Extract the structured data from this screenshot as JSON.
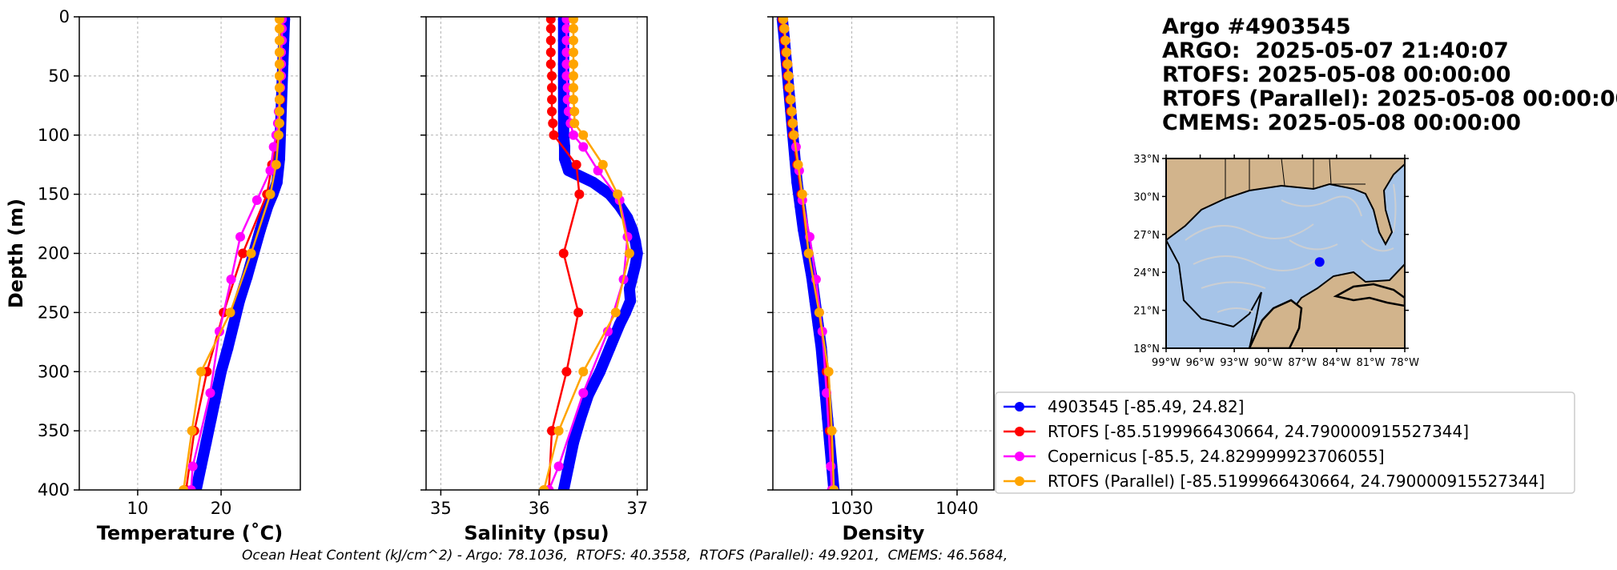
{
  "header": {
    "title_lines": [
      "Argo #4903545",
      "ARGO:  2025-05-07 21:40:07",
      "RTOFS: 2025-05-08 00:00:00",
      "RTOFS (Parallel): 2025-05-08 00:00:00",
      "CMEMS: 2025-05-08 00:00:00"
    ]
  },
  "footer": {
    "ohc_text": "Ocean Heat Content (kJ/cm^2) - Argo: 78.1036,  RTOFS: 40.3558,  RTOFS (Parallel): 49.9201,  CMEMS: 46.5684,"
  },
  "colors": {
    "argo": "#0000ff",
    "rtofs": "#ff0000",
    "copernicus": "#ff00ff",
    "rtofs_parallel": "#ffa500",
    "ocean": "#a6c4e8",
    "land": "#d2b48c",
    "grid": "#b0b0b0"
  },
  "legend": [
    {
      "label": "4903545 [-85.49, 24.82]",
      "color_key": "argo"
    },
    {
      "label": "RTOFS [-85.5199966430664, 24.790000915527344]",
      "color_key": "rtofs"
    },
    {
      "label": "Copernicus [-85.5, 24.829999923706055]",
      "color_key": "copernicus"
    },
    {
      "label": "RTOFS (Parallel) [-85.5199966430664, 24.790000915527344]",
      "color_key": "rtofs_parallel"
    }
  ],
  "map": {
    "lat_labels": [
      "33°N",
      "30°N",
      "27°N",
      "24°N",
      "21°N",
      "18°N"
    ],
    "lon_labels": [
      "99°W",
      "96°W",
      "93°W",
      "90°W",
      "87°W",
      "84°W",
      "81°W",
      "78°W"
    ],
    "lon_range": [
      -99,
      -78
    ],
    "lat_range": [
      18,
      33
    ],
    "float_position": {
      "lon": -85.49,
      "lat": 24.82
    }
  },
  "chart_data": [
    {
      "type": "line",
      "xlabel": "Temperature (˚C)",
      "ylabel": "Depth (m)",
      "xlim": [
        3,
        29.5
      ],
      "ylim": [
        400,
        0
      ],
      "xticks": [
        10,
        20
      ],
      "yticks": [
        0,
        50,
        100,
        150,
        200,
        250,
        300,
        350,
        400
      ],
      "grid": true,
      "series": [
        {
          "key": "argo",
          "style": "dense",
          "depth": [
            2,
            20,
            40,
            60,
            80,
            100,
            120,
            140,
            150,
            160,
            180,
            200,
            220,
            240,
            260,
            280,
            300,
            320,
            340,
            360,
            380,
            400
          ],
          "values": [
            27.6,
            27.5,
            27.4,
            27.3,
            27.2,
            27.1,
            27.0,
            26.7,
            26.2,
            25.6,
            24.7,
            23.9,
            23.1,
            22.2,
            21.5,
            20.8,
            20.0,
            19.4,
            18.8,
            18.2,
            17.6,
            17.0
          ]
        },
        {
          "key": "rtofs",
          "depth": [
            2,
            10,
            20,
            30,
            40,
            50,
            60,
            70,
            80,
            90,
            100,
            125,
            150,
            200,
            250,
            300,
            350,
            400
          ],
          "values": [
            27.2,
            27.2,
            27.2,
            27.2,
            27.2,
            27.2,
            27.1,
            27.1,
            27.0,
            26.9,
            26.8,
            26.1,
            25.5,
            22.6,
            20.3,
            18.3,
            16.8,
            15.8
          ]
        },
        {
          "key": "copernicus",
          "depth": [
            2,
            10,
            20,
            30,
            40,
            50,
            60,
            70,
            80,
            90,
            100,
            110,
            130,
            155,
            186,
            222,
            266,
            318,
            380,
            400
          ],
          "values": [
            27.3,
            27.3,
            27.3,
            27.2,
            27.2,
            27.2,
            27.1,
            27.0,
            26.9,
            26.8,
            26.6,
            26.3,
            25.9,
            24.3,
            22.3,
            21.2,
            19.8,
            18.7,
            16.6,
            16.4
          ]
        },
        {
          "key": "rtofs_parallel",
          "depth": [
            2,
            10,
            20,
            30,
            40,
            50,
            60,
            70,
            80,
            90,
            100,
            125,
            150,
            200,
            250,
            300,
            350,
            400
          ],
          "values": [
            27.0,
            27.0,
            27.0,
            27.0,
            27.0,
            27.0,
            27.0,
            27.0,
            27.0,
            27.0,
            26.9,
            26.6,
            25.9,
            23.6,
            21.1,
            17.6,
            16.5,
            15.5
          ]
        }
      ]
    },
    {
      "type": "line",
      "xlabel": "Salinity (psu)",
      "ylabel": "",
      "xlim": [
        34.85,
        37.1
      ],
      "ylim": [
        400,
        0
      ],
      "xticks": [
        35,
        36,
        37
      ],
      "yticks": [
        0,
        50,
        100,
        150,
        200,
        250,
        300,
        350,
        400
      ],
      "grid": true,
      "series": [
        {
          "key": "argo",
          "style": "dense",
          "depth": [
            2,
            20,
            40,
            60,
            80,
            100,
            110,
            120,
            130,
            140,
            150,
            160,
            170,
            180,
            190,
            200,
            210,
            220,
            230,
            240,
            250,
            260,
            280,
            300,
            320,
            340,
            360,
            380,
            400
          ],
          "values": [
            36.25,
            36.25,
            36.25,
            36.25,
            36.25,
            36.25,
            36.26,
            36.26,
            36.3,
            36.55,
            36.72,
            36.82,
            36.9,
            36.95,
            36.98,
            37.0,
            36.98,
            36.95,
            36.92,
            36.93,
            36.88,
            36.82,
            36.72,
            36.62,
            36.5,
            36.42,
            36.35,
            36.3,
            36.25
          ]
        },
        {
          "key": "rtofs",
          "depth": [
            2,
            10,
            20,
            30,
            40,
            50,
            60,
            70,
            80,
            90,
            100,
            125,
            150,
            200,
            250,
            300,
            350,
            400
          ],
          "values": [
            36.12,
            36.12,
            36.12,
            36.12,
            36.12,
            36.13,
            36.13,
            36.13,
            36.13,
            36.14,
            36.15,
            36.38,
            36.41,
            36.25,
            36.4,
            36.28,
            36.13,
            36.1
          ]
        },
        {
          "key": "copernicus",
          "depth": [
            2,
            10,
            20,
            30,
            40,
            50,
            60,
            70,
            80,
            90,
            100,
            110,
            130,
            155,
            186,
            222,
            266,
            318,
            380,
            400
          ],
          "values": [
            36.28,
            36.28,
            36.28,
            36.28,
            36.28,
            36.28,
            36.29,
            36.29,
            36.3,
            36.32,
            36.35,
            36.45,
            36.6,
            36.82,
            36.9,
            36.86,
            36.7,
            36.45,
            36.2,
            36.1
          ]
        },
        {
          "key": "rtofs_parallel",
          "depth": [
            2,
            10,
            20,
            30,
            40,
            50,
            60,
            70,
            80,
            90,
            100,
            125,
            150,
            200,
            250,
            300,
            350,
            400
          ],
          "values": [
            36.35,
            36.35,
            36.35,
            36.35,
            36.35,
            36.35,
            36.35,
            36.35,
            36.36,
            36.36,
            36.45,
            36.65,
            36.8,
            36.92,
            36.78,
            36.45,
            36.2,
            36.05
          ]
        }
      ]
    },
    {
      "type": "line",
      "xlabel": "Density",
      "ylabel": "",
      "xlim": [
        1022.5,
        1043.5
      ],
      "ylim": [
        400,
        0
      ],
      "xticks": [
        1030,
        1040
      ],
      "yticks": [
        0,
        50,
        100,
        150,
        200,
        250,
        300,
        350,
        400
      ],
      "grid": true,
      "series": [
        {
          "key": "argo",
          "style": "dense",
          "depth": [
            2,
            20,
            40,
            60,
            80,
            100,
            120,
            140,
            160,
            180,
            200,
            220,
            240,
            260,
            280,
            300,
            320,
            340,
            360,
            380,
            400
          ],
          "values": [
            1023.4,
            1023.6,
            1023.8,
            1024.0,
            1024.2,
            1024.4,
            1024.6,
            1024.8,
            1025.1,
            1025.4,
            1025.8,
            1026.2,
            1026.5,
            1026.8,
            1027.1,
            1027.3,
            1027.5,
            1027.7,
            1027.9,
            1028.1,
            1028.3
          ]
        },
        {
          "key": "rtofs",
          "depth": [
            2,
            10,
            20,
            30,
            40,
            50,
            60,
            70,
            80,
            90,
            100,
            125,
            150,
            200,
            250,
            300,
            350,
            400
          ],
          "values": [
            1023.4,
            1023.5,
            1023.6,
            1023.7,
            1023.8,
            1023.9,
            1024.0,
            1024.1,
            1024.2,
            1024.3,
            1024.4,
            1024.8,
            1025.2,
            1025.9,
            1026.9,
            1027.6,
            1027.9,
            1028.2
          ]
        },
        {
          "key": "copernicus",
          "depth": [
            2,
            10,
            20,
            30,
            40,
            50,
            60,
            70,
            80,
            90,
            100,
            110,
            130,
            155,
            186,
            222,
            266,
            318,
            380,
            400
          ],
          "values": [
            1023.5,
            1023.6,
            1023.7,
            1023.8,
            1023.9,
            1024.0,
            1024.1,
            1024.2,
            1024.3,
            1024.4,
            1024.5,
            1024.7,
            1025.0,
            1025.3,
            1026.0,
            1026.6,
            1027.2,
            1027.6,
            1028.0,
            1028.1
          ]
        },
        {
          "key": "rtofs_parallel",
          "depth": [
            2,
            10,
            20,
            30,
            40,
            50,
            60,
            70,
            80,
            90,
            100,
            125,
            150,
            200,
            250,
            300,
            350,
            400
          ],
          "values": [
            1023.5,
            1023.6,
            1023.7,
            1023.8,
            1023.9,
            1024.0,
            1024.1,
            1024.2,
            1024.3,
            1024.4,
            1024.5,
            1024.9,
            1025.3,
            1025.9,
            1026.9,
            1027.8,
            1028.1,
            1028.3
          ]
        }
      ]
    }
  ]
}
